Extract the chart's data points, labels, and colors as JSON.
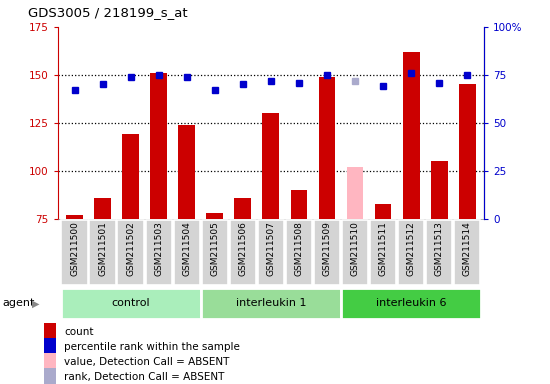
{
  "title": "GDS3005 / 218199_s_at",
  "samples": [
    "GSM211500",
    "GSM211501",
    "GSM211502",
    "GSM211503",
    "GSM211504",
    "GSM211505",
    "GSM211506",
    "GSM211507",
    "GSM211508",
    "GSM211509",
    "GSM211510",
    "GSM211511",
    "GSM211512",
    "GSM211513",
    "GSM211514"
  ],
  "counts": [
    77,
    86,
    119,
    151,
    124,
    78,
    86,
    130,
    90,
    149,
    102,
    83,
    162,
    105,
    145
  ],
  "ranks": [
    67,
    70,
    74,
    75,
    74,
    67,
    70,
    72,
    71,
    75,
    72,
    69,
    76,
    71,
    75
  ],
  "absent_indices": [
    10
  ],
  "groups": [
    {
      "label": "control",
      "start": 0,
      "end": 5,
      "color": "#AAEEBB"
    },
    {
      "label": "interleukin 1",
      "start": 5,
      "end": 10,
      "color": "#99DD99"
    },
    {
      "label": "interleukin 6",
      "start": 10,
      "end": 15,
      "color": "#44CC44"
    }
  ],
  "bar_color": "#CC0000",
  "absent_bar_color": "#FFB6C1",
  "rank_color": "#0000CC",
  "absent_rank_color": "#AAAACC",
  "ylim_left": [
    75,
    175
  ],
  "ylim_right": [
    0,
    100
  ],
  "yticks_left": [
    75,
    100,
    125,
    150,
    175
  ],
  "yticks_right": [
    0,
    25,
    50,
    75,
    100
  ],
  "ytick_labels_right": [
    "0",
    "25",
    "50",
    "75",
    "100%"
  ],
  "agent_label": "agent",
  "legend_items": [
    {
      "color": "#CC0000",
      "label": "count"
    },
    {
      "color": "#0000CC",
      "label": "percentile rank within the sample"
    },
    {
      "color": "#FFB6C1",
      "label": "value, Detection Call = ABSENT"
    },
    {
      "color": "#AAAACC",
      "label": "rank, Detection Call = ABSENT"
    }
  ]
}
